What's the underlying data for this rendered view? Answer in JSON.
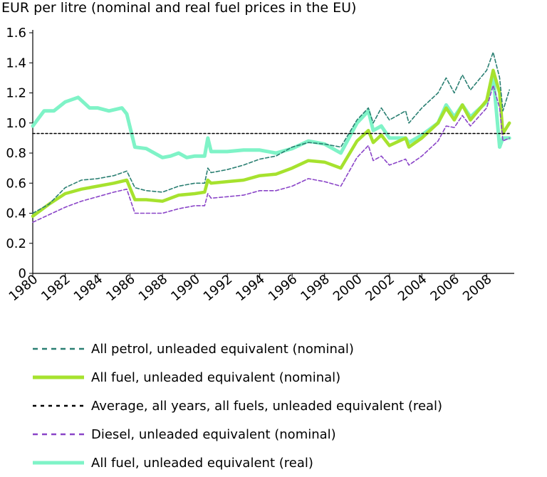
{
  "chart_data": {
    "type": "line",
    "title": "EUR per litre (nominal and real fuel prices in the EU)",
    "xlabel": "",
    "ylabel": "",
    "xlim": [
      1980,
      2009.7
    ],
    "ylim": [
      0,
      1.6
    ],
    "x_ticks": [
      "1980",
      "1982",
      "1984",
      "1986",
      "1988",
      "1990",
      "1992",
      "1994",
      "1996",
      "1998",
      "2000",
      "2002",
      "2004",
      "2006",
      "2008"
    ],
    "y_ticks": [
      "0",
      "0.2",
      "0.4",
      "0.6",
      "0.8",
      "1.0",
      "1.2",
      "1.4",
      "1.6"
    ],
    "grid": false,
    "legend_position": "bottom",
    "series": [
      {
        "name": "All petrol, unleaded equivalent (nominal)",
        "color": "#2a7f72",
        "style": "dashed",
        "x": [
          1980,
          1981,
          1982,
          1983,
          1984,
          1985,
          1985.8,
          1986.3,
          1987,
          1988,
          1989,
          1990,
          1990.6,
          1990.8,
          1991,
          1992,
          1993,
          1994,
          1995,
          1996,
          1997,
          1998,
          1999,
          2000,
          2000.7,
          2001,
          2001.5,
          2002,
          2003,
          2003.2,
          2004,
          2005,
          2005.5,
          2006,
          2006.5,
          2007,
          2008,
          2008.4,
          2008.8,
          2009,
          2009.4
        ],
        "values": [
          0.4,
          0.46,
          0.57,
          0.62,
          0.63,
          0.65,
          0.68,
          0.57,
          0.55,
          0.54,
          0.58,
          0.6,
          0.6,
          0.7,
          0.67,
          0.69,
          0.72,
          0.76,
          0.78,
          0.84,
          0.87,
          0.86,
          0.84,
          1.02,
          1.1,
          1.0,
          1.1,
          1.02,
          1.08,
          1.0,
          1.1,
          1.2,
          1.3,
          1.2,
          1.32,
          1.22,
          1.35,
          1.47,
          1.3,
          1.08,
          1.22
        ]
      },
      {
        "name": "All fuel, unleaded equivalent (nominal)",
        "color": "#a6e22e",
        "style": "solid",
        "x": [
          1980,
          1981,
          1982,
          1983,
          1984,
          1985,
          1985.8,
          1986.3,
          1987,
          1988,
          1989,
          1990,
          1990.6,
          1990.8,
          1991,
          1992,
          1993,
          1994,
          1995,
          1996,
          1997,
          1998,
          1999,
          2000,
          2000.7,
          2001,
          2001.5,
          2002,
          2003,
          2003.2,
          2004,
          2005,
          2005.5,
          2006,
          2006.5,
          2007,
          2008,
          2008.4,
          2008.8,
          2009,
          2009.4
        ],
        "values": [
          0.38,
          0.46,
          0.53,
          0.56,
          0.58,
          0.6,
          0.62,
          0.49,
          0.49,
          0.48,
          0.52,
          0.53,
          0.54,
          0.62,
          0.6,
          0.61,
          0.62,
          0.65,
          0.66,
          0.7,
          0.75,
          0.74,
          0.7,
          0.88,
          0.95,
          0.87,
          0.92,
          0.85,
          0.9,
          0.84,
          0.9,
          1.0,
          1.1,
          1.02,
          1.12,
          1.02,
          1.15,
          1.35,
          1.2,
          0.93,
          1.0
        ]
      },
      {
        "name": "Average, all years, all fuels, unleaded equivalent (real)",
        "color": "#000000",
        "style": "dotted",
        "x": [
          1980,
          2009.4
        ],
        "values": [
          0.93,
          0.93
        ]
      },
      {
        "name": "Diesel, unleaded equivalent (nominal)",
        "color": "#8a44c8",
        "style": "dashed",
        "x": [
          1980,
          1981,
          1982,
          1983,
          1984,
          1985,
          1985.8,
          1986.3,
          1987,
          1988,
          1989,
          1990,
          1990.6,
          1990.8,
          1991,
          1992,
          1993,
          1994,
          1995,
          1996,
          1997,
          1998,
          1999,
          2000,
          2000.7,
          2001,
          2001.5,
          2002,
          2003,
          2003.2,
          2004,
          2005,
          2005.5,
          2006,
          2006.5,
          2007,
          2008,
          2008.4,
          2008.8,
          2009,
          2009.4
        ],
        "values": [
          0.34,
          0.39,
          0.44,
          0.48,
          0.51,
          0.54,
          0.56,
          0.4,
          0.4,
          0.4,
          0.43,
          0.45,
          0.45,
          0.53,
          0.5,
          0.51,
          0.52,
          0.55,
          0.55,
          0.58,
          0.63,
          0.61,
          0.58,
          0.77,
          0.85,
          0.75,
          0.78,
          0.72,
          0.76,
          0.72,
          0.78,
          0.88,
          0.98,
          0.97,
          1.05,
          0.98,
          1.1,
          1.25,
          1.1,
          0.88,
          0.9
        ]
      },
      {
        "name": "All fuel, unleaded equivalent (real)",
        "color": "#7ff3c7",
        "style": "solid",
        "x": [
          1980,
          1980.7,
          1981.3,
          1982,
          1982.8,
          1983.5,
          1984,
          1984.7,
          1985.5,
          1985.8,
          1986.3,
          1987,
          1988,
          1988.5,
          1989,
          1989.5,
          1990,
          1990.6,
          1990.8,
          1991,
          1992,
          1993,
          1994,
          1995,
          1996,
          1997,
          1998,
          1999,
          2000,
          2000.7,
          2001,
          2001.5,
          2002,
          2003,
          2003.2,
          2004,
          2005,
          2005.5,
          2006,
          2006.5,
          2007,
          2008,
          2008.4,
          2008.8,
          2009,
          2009.4
        ],
        "values": [
          0.98,
          1.08,
          1.08,
          1.14,
          1.17,
          1.1,
          1.1,
          1.08,
          1.1,
          1.06,
          0.84,
          0.83,
          0.77,
          0.78,
          0.8,
          0.77,
          0.78,
          0.78,
          0.9,
          0.81,
          0.81,
          0.82,
          0.82,
          0.8,
          0.83,
          0.88,
          0.86,
          0.8,
          1.0,
          1.08,
          0.95,
          0.98,
          0.9,
          0.9,
          0.87,
          0.92,
          1.0,
          1.12,
          1.04,
          1.12,
          1.04,
          1.14,
          1.32,
          0.84,
          0.9,
          0.9
        ]
      }
    ]
  }
}
